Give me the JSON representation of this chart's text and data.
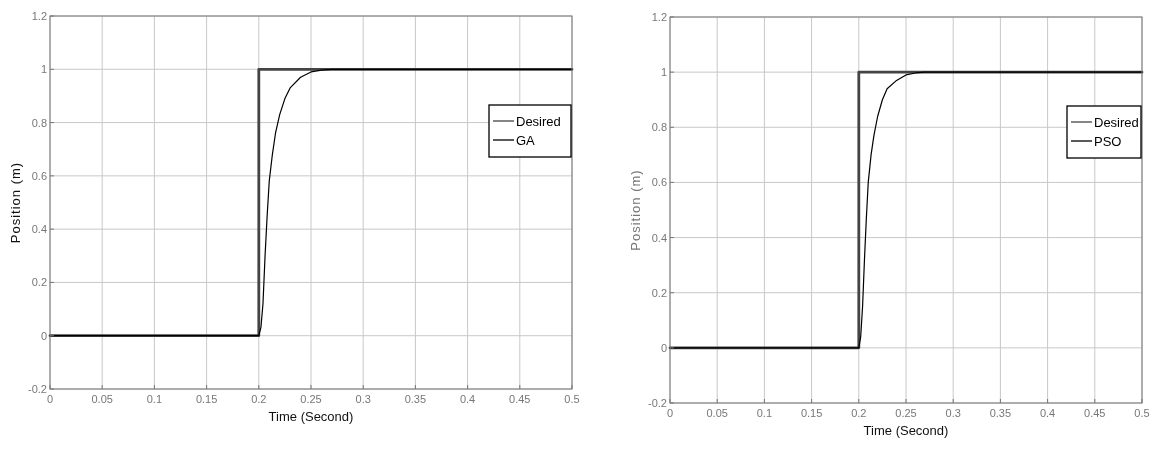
{
  "chart_data": [
    {
      "type": "line",
      "xlabel": "Time (Second)",
      "ylabel": "Position (m)",
      "xlim": [
        0,
        0.5
      ],
      "ylim": [
        -0.2,
        1.2
      ],
      "xticks": [
        0,
        0.05,
        0.1,
        0.15,
        0.2,
        0.25,
        0.3,
        0.35,
        0.4,
        0.45,
        0.5
      ],
      "yticks": [
        -0.2,
        0,
        0.2,
        0.4,
        0.6,
        0.8,
        1,
        1.2
      ],
      "grid": true,
      "legend": "right",
      "series": [
        {
          "name": "Desired",
          "color": "#444444",
          "x": [
            0,
            0.2,
            0.2,
            0.5
          ],
          "values": [
            0,
            0,
            1,
            1
          ]
        },
        {
          "name": "GA",
          "color": "#000000",
          "x": [
            0,
            0.2,
            0.202,
            0.204,
            0.206,
            0.208,
            0.21,
            0.213,
            0.216,
            0.22,
            0.225,
            0.23,
            0.24,
            0.25,
            0.26,
            0.27,
            0.5
          ],
          "values": [
            0,
            0,
            0.03,
            0.12,
            0.3,
            0.45,
            0.58,
            0.68,
            0.76,
            0.83,
            0.89,
            0.93,
            0.97,
            0.99,
            0.997,
            1,
            1
          ]
        }
      ]
    },
    {
      "type": "line",
      "xlabel": "Time (Second)",
      "ylabel": "Position (m)",
      "xlim": [
        0,
        0.5
      ],
      "ylim": [
        -0.2,
        1.2
      ],
      "xticks": [
        0,
        0.05,
        0.1,
        0.15,
        0.2,
        0.25,
        0.3,
        0.35,
        0.4,
        0.45,
        0.5
      ],
      "yticks": [
        -0.2,
        0,
        0.2,
        0.4,
        0.6,
        0.8,
        1,
        1.2
      ],
      "grid": true,
      "legend": "right",
      "series": [
        {
          "name": "Desired",
          "color": "#444444",
          "x": [
            0,
            0.2,
            0.2,
            0.5
          ],
          "values": [
            0,
            0,
            1,
            1
          ]
        },
        {
          "name": "PSO",
          "color": "#000000",
          "x": [
            0,
            0.2,
            0.202,
            0.204,
            0.206,
            0.208,
            0.21,
            0.213,
            0.216,
            0.22,
            0.225,
            0.23,
            0.24,
            0.25,
            0.26,
            0.27,
            0.5
          ],
          "values": [
            0,
            0,
            0.04,
            0.15,
            0.32,
            0.47,
            0.6,
            0.7,
            0.77,
            0.84,
            0.9,
            0.94,
            0.97,
            0.99,
            0.997,
            1,
            1
          ]
        }
      ]
    }
  ]
}
